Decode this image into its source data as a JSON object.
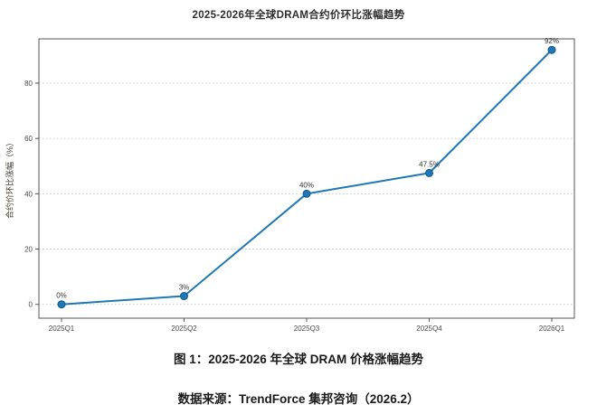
{
  "figure": {
    "title": "2025-2026年全球DRAM合约价环比涨幅趋势",
    "caption": "图 1：2025-2026 年全球 DRAM 价格涨幅趋势",
    "source": "数据来源：TrendForce 集邦咨询（2026.2）"
  },
  "chart_data": {
    "type": "line",
    "title": "2025-2026年全球DRAM合约价环比涨幅趋势",
    "categories": [
      "2025Q1",
      "2025Q2",
      "2025Q3",
      "2025Q4",
      "2026Q1"
    ],
    "series": [
      {
        "name": "DRAM合约价环比涨幅",
        "values": [
          0,
          3,
          40,
          47.5,
          92
        ],
        "point_labels": [
          "0%",
          "3%",
          "40%",
          "47.5%",
          "92%"
        ]
      }
    ],
    "xlabel": "",
    "ylabel": "合约价环比涨幅（%）",
    "yticks": [
      0,
      20,
      40,
      60,
      80
    ],
    "ylim": [
      -5,
      96
    ],
    "grid": "horizontal-dotted",
    "legend": "none",
    "colors": {
      "line": "#1f77b4",
      "marker_fill": "#1f77b4",
      "marker_edge": "#0e5a8a",
      "grid": "#c9c9c9",
      "border": "#555555",
      "tick_text": "#4a4a4a",
      "point_label_text": "#333333",
      "ylabel_text": "#4a3e36"
    }
  }
}
